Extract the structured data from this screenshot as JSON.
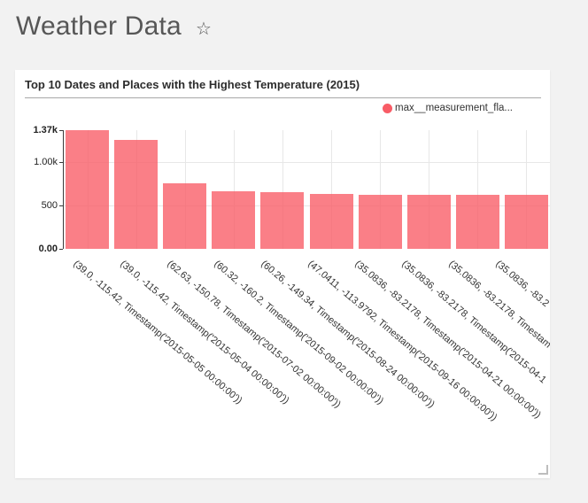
{
  "page": {
    "title": "Weather Data",
    "star_icon": "☆"
  },
  "card": {
    "title": "Top 10 Dates and Places with the Highest Temperature (2015)",
    "legend": {
      "label": "max__measurement_fla...",
      "color": "#f85c66"
    }
  },
  "chart_data": {
    "type": "bar",
    "title": "Top 10 Dates and Places with the Highest Temperature (2015)",
    "legend_entries": [
      "max__measurement_fla..."
    ],
    "legend_position": "top-right",
    "grid": true,
    "bar_color": "rgba(249,95,105,0.8)",
    "ylim": [
      0,
      1370
    ],
    "yticks": [
      {
        "label": "1.37k",
        "value": 1370,
        "bold": true,
        "grid": false
      },
      {
        "label": "1.00k",
        "value": 1000,
        "bold": false,
        "grid": true
      },
      {
        "label": "500",
        "value": 500,
        "bold": false,
        "grid": true
      },
      {
        "label": "0.00",
        "value": 0,
        "bold": true,
        "grid": false
      }
    ],
    "categories": [
      "(39.0, -115.42, Timestamp('2015-05-05 00:00:00'))",
      "(39.0, -115.42, Timestamp('2015-05-04 00:00:00'))",
      "(62.63, -150.78, Timestamp('2015-07-02 00:00:00'))",
      "(60.32, -160.2, Timestamp('2015-09-02 00:00:00'))",
      "(60.26, -149.34, Timestamp('2015-08-24 00:00:00'))",
      "(47.0411, -113.9792, Timestamp('2015-09-16 00:00:00'))",
      "(35.0836, -83.2178, Timestamp('2015-04-21 00:00:00'))",
      "(35.0836, -83.2178, Timestamp('2015-04-1",
      "(35.0836, -83.2178, Timestam",
      "(35.0836, -83.2"
    ],
    "values": [
      1370,
      1260,
      760,
      665,
      655,
      630,
      625,
      625,
      625,
      620
    ],
    "xlabel": "",
    "ylabel": ""
  }
}
